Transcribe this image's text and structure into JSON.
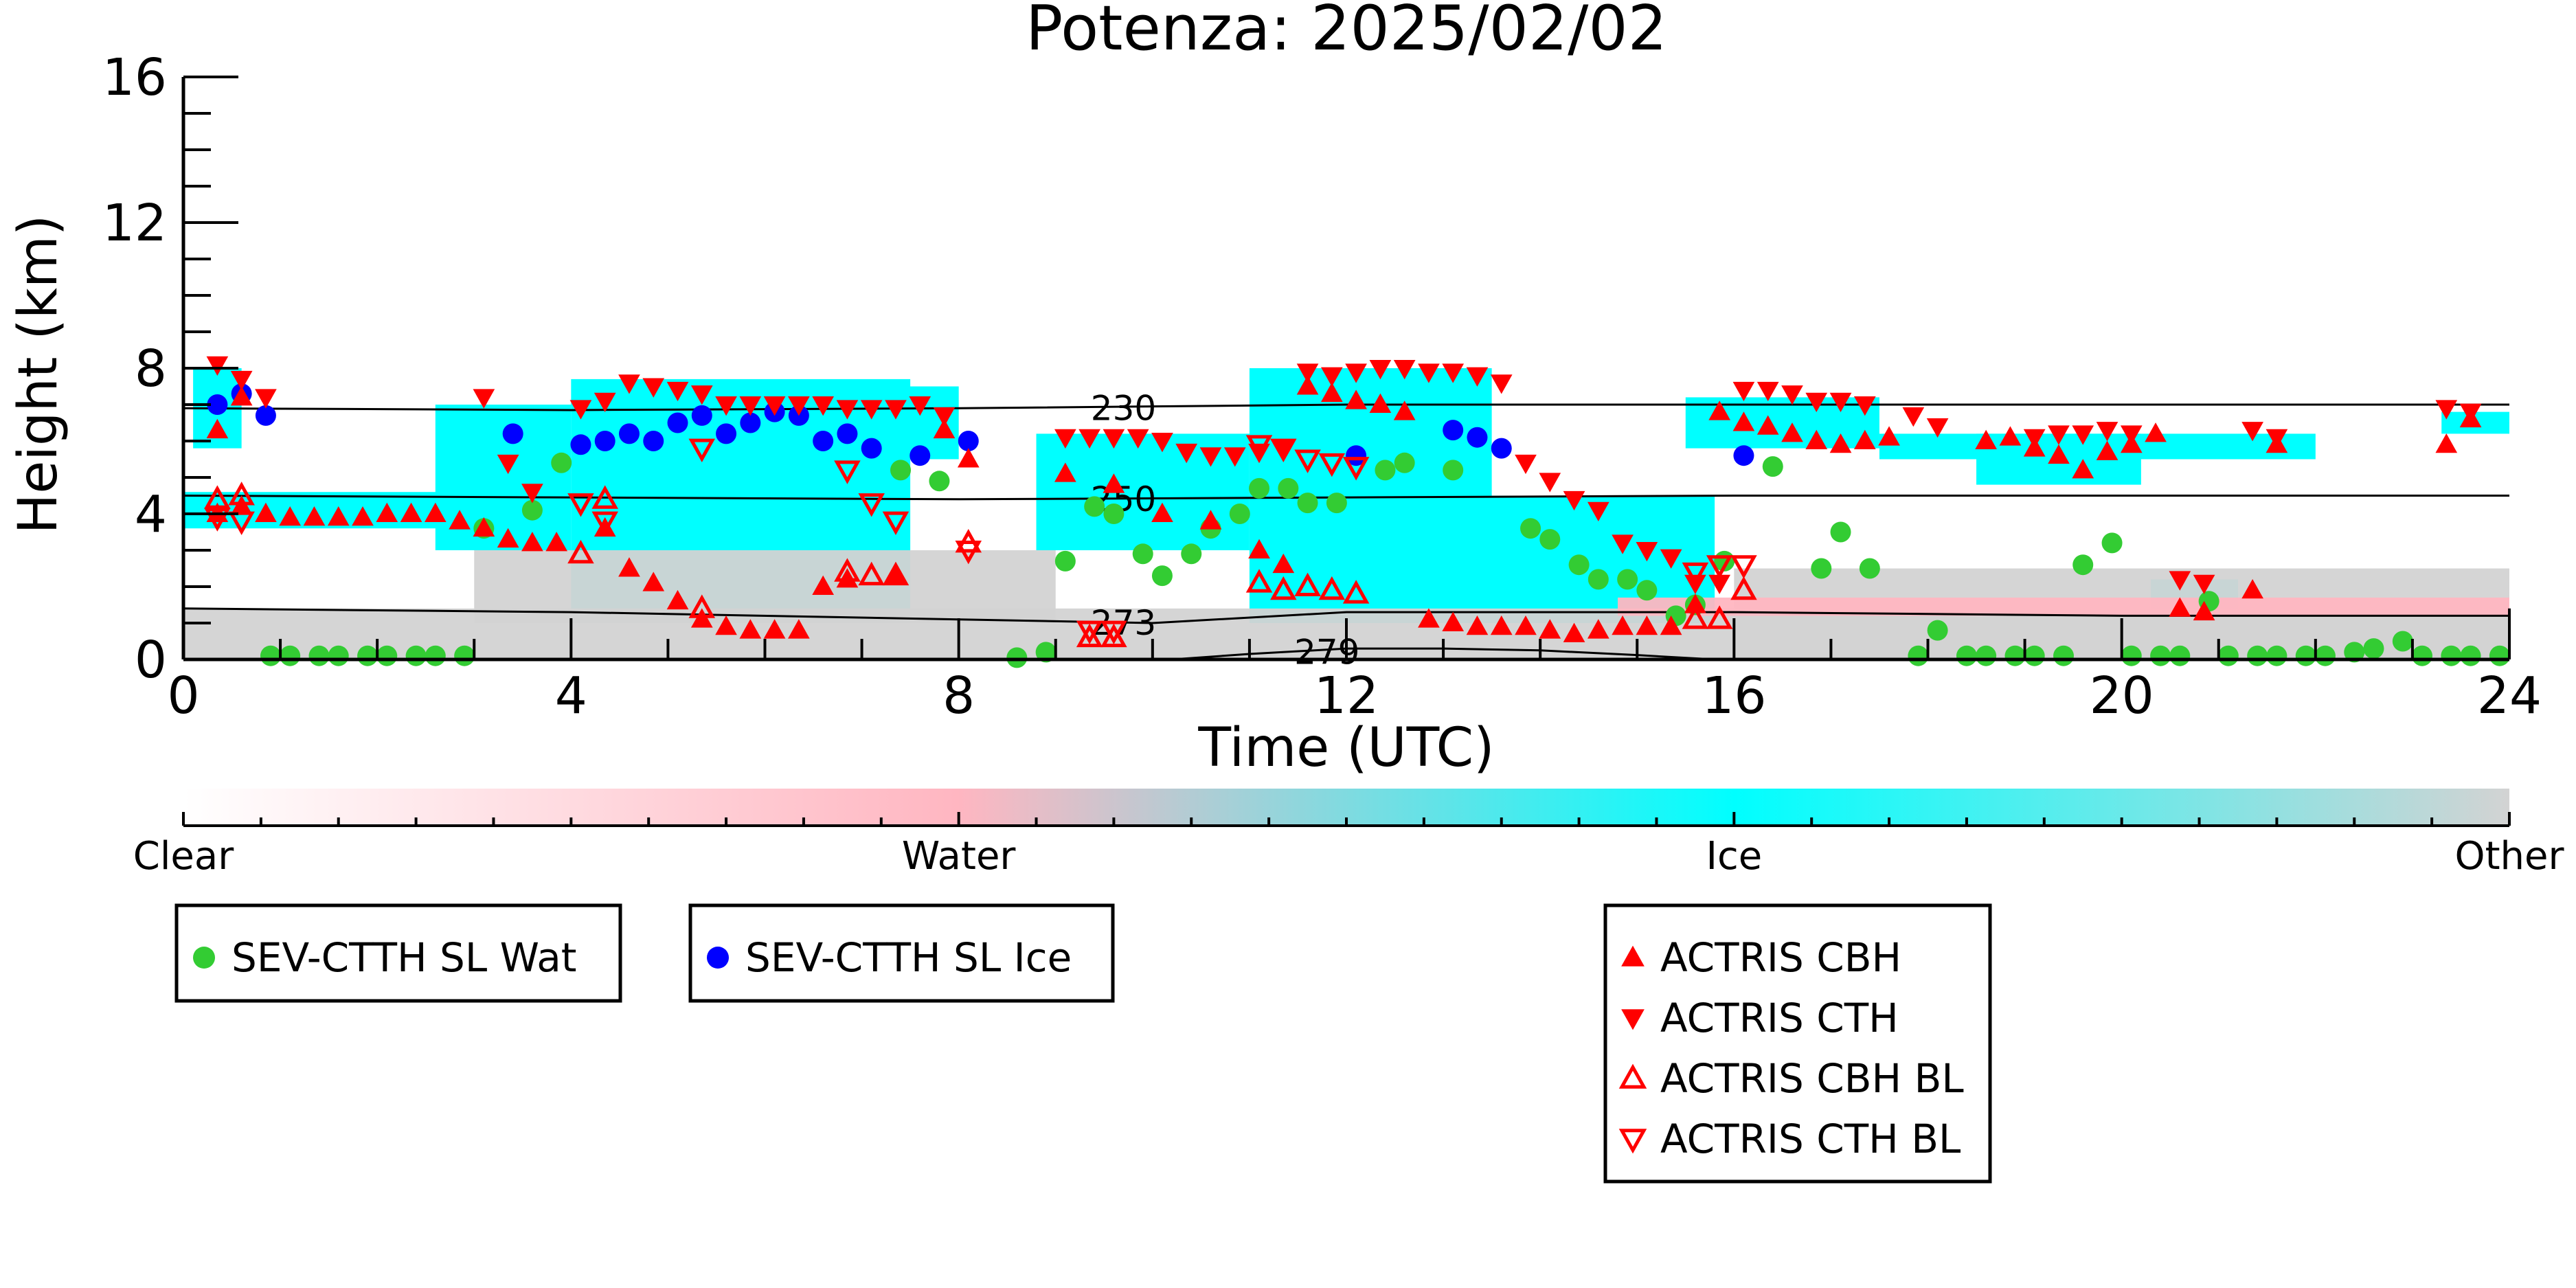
{
  "chart_data": {
    "type": "scatter",
    "title": "Potenza: 2025/02/02",
    "xlabel": "Time (UTC)",
    "ylabel": "Height (km)",
    "xlim": [
      0,
      24
    ],
    "ylim": [
      0,
      16
    ],
    "x_ticks": [
      0,
      4,
      8,
      12,
      16,
      20,
      24
    ],
    "y_ticks": [
      0,
      4,
      8,
      12,
      16
    ],
    "colorbar": {
      "labels": [
        "Clear",
        "Water",
        "Ice",
        "Other"
      ],
      "colors": {
        "clear": "#ffffff",
        "water": "#ffb6c1",
        "ice": "#00ffff",
        "other": "#d3d3d3"
      }
    },
    "contours": [
      {
        "label": "230",
        "x": [
          0,
          4,
          8,
          12,
          16,
          20,
          24
        ],
        "y": [
          6.9,
          6.85,
          6.9,
          7.0,
          7.0,
          7.0,
          7.0
        ]
      },
      {
        "label": "250",
        "x": [
          0,
          4,
          8,
          12,
          16,
          20,
          24
        ],
        "y": [
          4.5,
          4.45,
          4.4,
          4.45,
          4.5,
          4.5,
          4.5
        ]
      },
      {
        "label": "273",
        "x": [
          0,
          4,
          8,
          10,
          12,
          16,
          20,
          24
        ],
        "y": [
          1.4,
          1.3,
          1.1,
          1.0,
          1.3,
          1.3,
          1.2,
          1.2
        ]
      },
      {
        "label": "279",
        "x": [
          10.2,
          11,
          12,
          13,
          14,
          15,
          15.8
        ],
        "y": [
          0.0,
          0.15,
          0.3,
          0.3,
          0.25,
          0.12,
          0.0
        ]
      }
    ],
    "cloud_regions": [
      {
        "class": "ice",
        "x": [
          0.1,
          0.6
        ],
        "y": [
          5.8,
          8.0
        ]
      },
      {
        "class": "ice",
        "x": [
          0.0,
          3.5
        ],
        "y": [
          3.6,
          4.6
        ]
      },
      {
        "class": "ice",
        "x": [
          2.6,
          4.0
        ],
        "y": [
          3.0,
          7.0
        ]
      },
      {
        "class": "ice",
        "x": [
          4.0,
          7.5
        ],
        "y": [
          1.0,
          7.7
        ]
      },
      {
        "class": "ice",
        "x": [
          4.2,
          8.0
        ],
        "y": [
          5.5,
          7.5
        ]
      },
      {
        "class": "ice",
        "x": [
          8.8,
          11.0
        ],
        "y": [
          3.0,
          6.2
        ]
      },
      {
        "class": "ice",
        "x": [
          11.0,
          13.5
        ],
        "y": [
          1.0,
          8.0
        ]
      },
      {
        "class": "ice",
        "x": [
          13.0,
          15.8
        ],
        "y": [
          1.0,
          4.5
        ]
      },
      {
        "class": "ice",
        "x": [
          15.5,
          17.5
        ],
        "y": [
          5.8,
          7.2
        ]
      },
      {
        "class": "ice",
        "x": [
          17.5,
          22.0
        ],
        "y": [
          5.5,
          6.2
        ]
      },
      {
        "class": "ice",
        "x": [
          18.5,
          20.2
        ],
        "y": [
          4.8,
          6.2
        ]
      },
      {
        "class": "ice",
        "x": [
          23.3,
          24.0
        ],
        "y": [
          6.2,
          6.8
        ]
      },
      {
        "class": "ice",
        "x": [
          20.3,
          21.2
        ],
        "y": [
          1.2,
          2.2
        ]
      },
      {
        "class": "other",
        "x": [
          0.0,
          24.0
        ],
        "y": [
          0.0,
          1.4
        ]
      },
      {
        "class": "other",
        "x": [
          3.0,
          9.0
        ],
        "y": [
          1.0,
          3.0
        ]
      },
      {
        "class": "other",
        "x": [
          16.0,
          24.0
        ],
        "y": [
          0.0,
          2.5
        ]
      },
      {
        "class": "water",
        "x": [
          14.8,
          24.0
        ],
        "y": [
          1.2,
          1.7
        ]
      }
    ],
    "series": [
      {
        "name": "SEV-CTTH SL Wat",
        "marker": "circle",
        "color": "#33cc33",
        "x": [
          0.9,
          1.1,
          1.4,
          1.6,
          1.9,
          2.1,
          2.4,
          2.6,
          2.9,
          3.1,
          3.6,
          3.9,
          7.4,
          7.8,
          8.6,
          8.9,
          9.1,
          9.4,
          9.6,
          9.9,
          10.1,
          10.4,
          10.6,
          10.9,
          11.1,
          11.4,
          11.6,
          11.9,
          12.4,
          12.6,
          13.1,
          13.9,
          14.1,
          14.4,
          14.6,
          14.9,
          15.1,
          15.4,
          15.6,
          15.9,
          16.4,
          16.9,
          17.1,
          17.4,
          17.9,
          18.1,
          18.4,
          18.6,
          18.9,
          19.1,
          19.4,
          19.6,
          19.9,
          20.1,
          20.4,
          20.6,
          20.9,
          21.1,
          21.4,
          21.6,
          21.9,
          22.1,
          22.4,
          22.6,
          22.9,
          23.1,
          23.4,
          23.6,
          23.9
        ],
        "y": [
          0.1,
          0.1,
          0.1,
          0.1,
          0.1,
          0.1,
          0.1,
          0.1,
          0.1,
          3.6,
          4.1,
          5.4,
          5.2,
          4.9,
          0.05,
          0.2,
          2.7,
          4.2,
          4.0,
          2.9,
          2.3,
          2.9,
          3.6,
          4.0,
          4.7,
          4.7,
          4.3,
          4.3,
          5.2,
          5.4,
          5.2,
          3.6,
          3.3,
          2.6,
          2.2,
          2.2,
          1.9,
          1.2,
          1.5,
          2.7,
          5.3,
          2.5,
          3.5,
          2.5,
          0.1,
          0.8,
          0.1,
          0.1,
          0.1,
          0.1,
          0.1,
          2.6,
          3.2,
          0.1,
          0.1,
          0.1,
          1.6,
          0.1,
          0.1,
          0.1,
          0.1,
          0.1,
          0.2,
          0.3,
          0.5,
          0.1,
          0.1,
          0.1,
          0.1
        ]
      },
      {
        "name": "SEV-CTTH SL Ice",
        "marker": "circle",
        "color": "#0000ff",
        "x": [
          0.35,
          0.6,
          0.85,
          3.4,
          4.1,
          4.35,
          4.6,
          4.85,
          5.1,
          5.35,
          5.6,
          5.85,
          6.1,
          6.35,
          6.6,
          6.85,
          7.1,
          7.6,
          8.1,
          12.1,
          13.1,
          13.35,
          13.6,
          16.1
        ],
        "y": [
          7.0,
          7.3,
          6.7,
          6.2,
          5.9,
          6.0,
          6.2,
          6.0,
          6.5,
          6.7,
          6.2,
          6.5,
          6.8,
          6.7,
          6.0,
          6.2,
          5.8,
          5.6,
          6.0,
          5.6,
          6.3,
          6.1,
          5.8,
          5.6
        ]
      },
      {
        "name": "ACTRIS CBH",
        "marker": "triangle-up",
        "color": "#ff0000",
        "x": [
          0.35,
          0.6,
          0.35,
          0.6,
          0.85,
          1.1,
          1.35,
          1.6,
          1.85,
          2.1,
          2.35,
          2.6,
          2.85,
          3.1,
          3.35,
          3.6,
          3.85,
          4.35,
          4.6,
          4.85,
          5.1,
          5.35,
          5.6,
          5.85,
          6.1,
          6.35,
          6.6,
          6.85,
          7.35,
          7.85,
          8.1,
          9.1,
          9.6,
          10.1,
          10.6,
          11.1,
          11.35,
          11.6,
          11.85,
          12.1,
          12.35,
          12.6,
          12.85,
          13.1,
          13.35,
          13.6,
          13.85,
          14.1,
          14.35,
          14.6,
          14.85,
          15.1,
          15.35,
          15.6,
          15.85,
          16.1,
          16.35,
          16.6,
          16.85,
          17.1,
          17.35,
          17.6,
          18.6,
          18.85,
          19.1,
          19.35,
          19.6,
          19.85,
          20.1,
          20.35,
          20.6,
          20.85,
          21.35,
          21.6,
          23.35,
          23.6
        ],
        "y": [
          6.3,
          7.2,
          4.0,
          4.2,
          4.0,
          3.9,
          3.9,
          3.9,
          3.9,
          4.0,
          4.0,
          4.0,
          3.8,
          3.6,
          3.3,
          3.2,
          3.2,
          3.6,
          2.5,
          2.1,
          1.6,
          1.1,
          0.9,
          0.8,
          0.8,
          0.8,
          2.0,
          2.2,
          2.3,
          6.3,
          5.5,
          5.1,
          4.8,
          4.0,
          3.8,
          3.0,
          2.6,
          7.5,
          7.3,
          7.1,
          7.0,
          6.8,
          1.1,
          1.0,
          0.9,
          0.9,
          0.9,
          0.8,
          0.7,
          0.8,
          0.9,
          0.9,
          0.9,
          1.5,
          6.8,
          6.5,
          6.4,
          6.2,
          6.0,
          5.9,
          6.0,
          6.1,
          6.0,
          6.1,
          5.8,
          5.6,
          5.2,
          5.7,
          5.9,
          6.2,
          1.4,
          1.3,
          1.9,
          5.9,
          5.9,
          6.6
        ]
      },
      {
        "name": "ACTRIS CTH",
        "marker": "triangle-down",
        "color": "#ff0000",
        "x": [
          0.35,
          0.6,
          0.85,
          3.1,
          3.35,
          3.6,
          4.1,
          4.35,
          4.6,
          4.85,
          5.1,
          5.35,
          5.6,
          5.85,
          6.1,
          6.35,
          6.6,
          6.85,
          7.1,
          7.35,
          7.6,
          7.85,
          9.1,
          9.35,
          9.6,
          9.85,
          10.1,
          10.35,
          10.6,
          10.85,
          11.1,
          11.35,
          11.6,
          11.85,
          12.1,
          12.35,
          12.6,
          12.85,
          13.1,
          13.35,
          13.6,
          13.85,
          14.1,
          14.35,
          14.6,
          14.85,
          15.1,
          15.35,
          15.6,
          15.85,
          16.1,
          16.35,
          16.6,
          16.85,
          17.1,
          17.35,
          17.85,
          18.1,
          19.1,
          19.35,
          19.6,
          19.85,
          20.1,
          20.6,
          20.85,
          21.35,
          21.6,
          23.35,
          23.6
        ],
        "y": [
          8.1,
          7.7,
          7.2,
          7.2,
          5.4,
          4.6,
          6.9,
          7.1,
          7.6,
          7.5,
          7.4,
          7.3,
          7.0,
          7.0,
          7.0,
          7.0,
          7.0,
          6.9,
          6.9,
          6.9,
          7.0,
          6.7,
          6.1,
          6.1,
          6.1,
          6.1,
          6.0,
          5.7,
          5.6,
          5.6,
          5.7,
          5.8,
          7.9,
          7.8,
          7.9,
          8.0,
          8.0,
          7.9,
          7.9,
          7.8,
          7.6,
          5.4,
          4.9,
          4.4,
          4.1,
          3.2,
          3.0,
          2.8,
          2.1,
          2.1,
          7.4,
          7.4,
          7.3,
          7.1,
          7.1,
          7.0,
          6.7,
          6.4,
          6.1,
          6.2,
          6.2,
          6.3,
          6.2,
          2.2,
          2.1,
          6.3,
          6.1,
          6.9,
          6.8
        ]
      },
      {
        "name": "ACTRIS CBH BL",
        "marker": "triangle-up-open",
        "color": "#ff0000",
        "x": [
          0.35,
          0.6,
          4.1,
          4.35,
          5.35,
          6.85,
          7.1,
          7.35,
          8.1,
          9.35,
          9.6,
          11.1,
          11.35,
          11.6,
          11.85,
          12.1,
          15.6,
          15.85,
          16.1
        ],
        "y": [
          4.4,
          4.5,
          2.9,
          4.4,
          1.4,
          2.4,
          2.3,
          2.3,
          3.2,
          0.6,
          0.6,
          2.1,
          1.9,
          2.0,
          1.9,
          1.8,
          1.1,
          1.1,
          1.9
        ]
      },
      {
        "name": "ACTRIS CTH BL",
        "marker": "triangle-down-open",
        "color": "#ff0000",
        "x": [
          0.35,
          0.6,
          4.1,
          4.35,
          5.35,
          6.85,
          7.1,
          7.35,
          8.1,
          9.35,
          9.6,
          11.1,
          11.35,
          11.6,
          11.85,
          12.1,
          15.6,
          15.85,
          16.1
        ],
        "y": [
          3.9,
          3.8,
          4.3,
          3.8,
          5.8,
          5.2,
          4.3,
          3.8,
          3.0,
          0.8,
          0.8,
          5.9,
          5.8,
          5.5,
          5.4,
          5.3,
          2.4,
          2.6,
          2.6
        ]
      }
    ]
  }
}
